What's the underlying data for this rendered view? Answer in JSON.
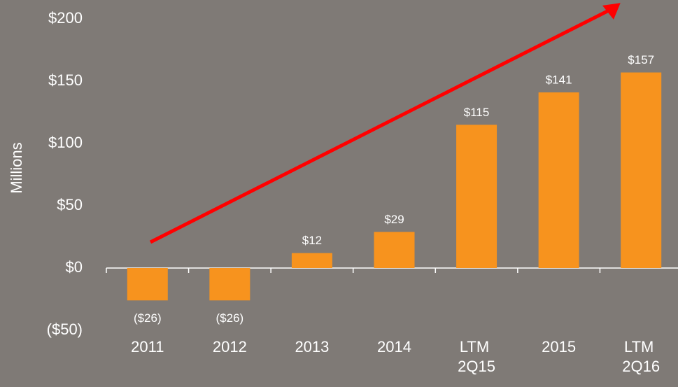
{
  "chart_data": {
    "type": "bar",
    "y_axis_label": "Millions",
    "categories": [
      "2011",
      "2012",
      "2013",
      "2014",
      "LTM 2Q15",
      "2015",
      "LTM 2Q16"
    ],
    "values": [
      -26,
      -26,
      12,
      29,
      115,
      141,
      157
    ],
    "value_labels": [
      "($26)",
      "($26)",
      "$12",
      "$29",
      "$115",
      "$141",
      "$157"
    ],
    "color": "#f7931e",
    "ylim": [
      -50,
      200
    ],
    "yticks": [
      {
        "value": -50,
        "label": "($50)"
      },
      {
        "value": 0,
        "label": "$0"
      },
      {
        "value": 50,
        "label": "$50"
      },
      {
        "value": 100,
        "label": "$100"
      },
      {
        "value": 150,
        "label": "$150"
      },
      {
        "value": 200,
        "label": "$200"
      }
    ],
    "grid": false
  }
}
